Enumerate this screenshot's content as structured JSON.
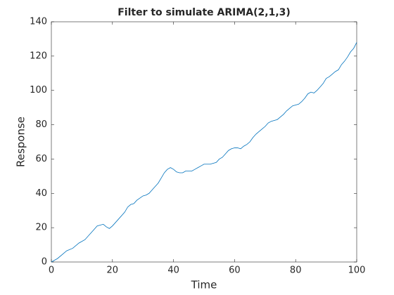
{
  "chart_data": {
    "type": "line",
    "title": "Filter to simulate ARIMA(2,1,3)",
    "x_label": "Time",
    "y_label": "Response",
    "x": [
      0,
      2,
      4,
      5,
      7,
      9,
      11,
      13,
      14,
      15,
      16,
      17,
      18,
      19,
      20,
      21,
      22,
      24,
      25,
      26,
      27,
      28,
      30,
      31,
      32,
      33,
      34,
      35,
      36,
      37,
      38,
      39,
      40,
      41,
      42,
      43,
      44,
      45,
      46,
      47,
      48,
      49,
      50,
      51,
      52,
      53,
      54,
      55,
      56,
      57,
      58,
      59,
      60,
      61,
      62,
      63,
      64,
      65,
      66,
      67,
      68,
      69,
      70,
      71,
      72,
      73,
      74,
      75,
      76,
      77,
      78,
      79,
      80,
      81,
      82,
      83,
      84,
      85,
      86,
      87,
      88,
      89,
      90,
      91,
      92,
      93,
      94,
      95,
      96,
      97,
      98,
      99,
      100
    ],
    "series": [
      {
        "name": "Response",
        "color": "#0072bd",
        "values": [
          0,
          2,
          5,
          6.5,
          8,
          11,
          13,
          17,
          19,
          21,
          21.5,
          22,
          20.5,
          19.5,
          21,
          23,
          25,
          29,
          32,
          33.5,
          34,
          36,
          38.5,
          39,
          40,
          42,
          44,
          46,
          49,
          52,
          54,
          55,
          54,
          52.5,
          52,
          52,
          53,
          53,
          53,
          54,
          55,
          56,
          57,
          57,
          57,
          57.5,
          58,
          60,
          61,
          63,
          65,
          66,
          66.5,
          66.5,
          66,
          67.5,
          68.5,
          70,
          72.5,
          74.5,
          76,
          77.5,
          79,
          81,
          82,
          82.5,
          83,
          84.5,
          86,
          88,
          89.5,
          91,
          91.5,
          92,
          93.5,
          95.5,
          98,
          99,
          98.5,
          100,
          102,
          104,
          107,
          108,
          109.5,
          111,
          112,
          115,
          117,
          119.5,
          122.5,
          124.5,
          128
        ]
      }
    ],
    "xlim": [
      0,
      100
    ],
    "xticks": [
      0,
      20,
      40,
      60,
      80,
      100
    ],
    "ylim": [
      0,
      140
    ],
    "yticks": [
      0,
      20,
      40,
      60,
      80,
      100,
      120,
      140
    ]
  }
}
